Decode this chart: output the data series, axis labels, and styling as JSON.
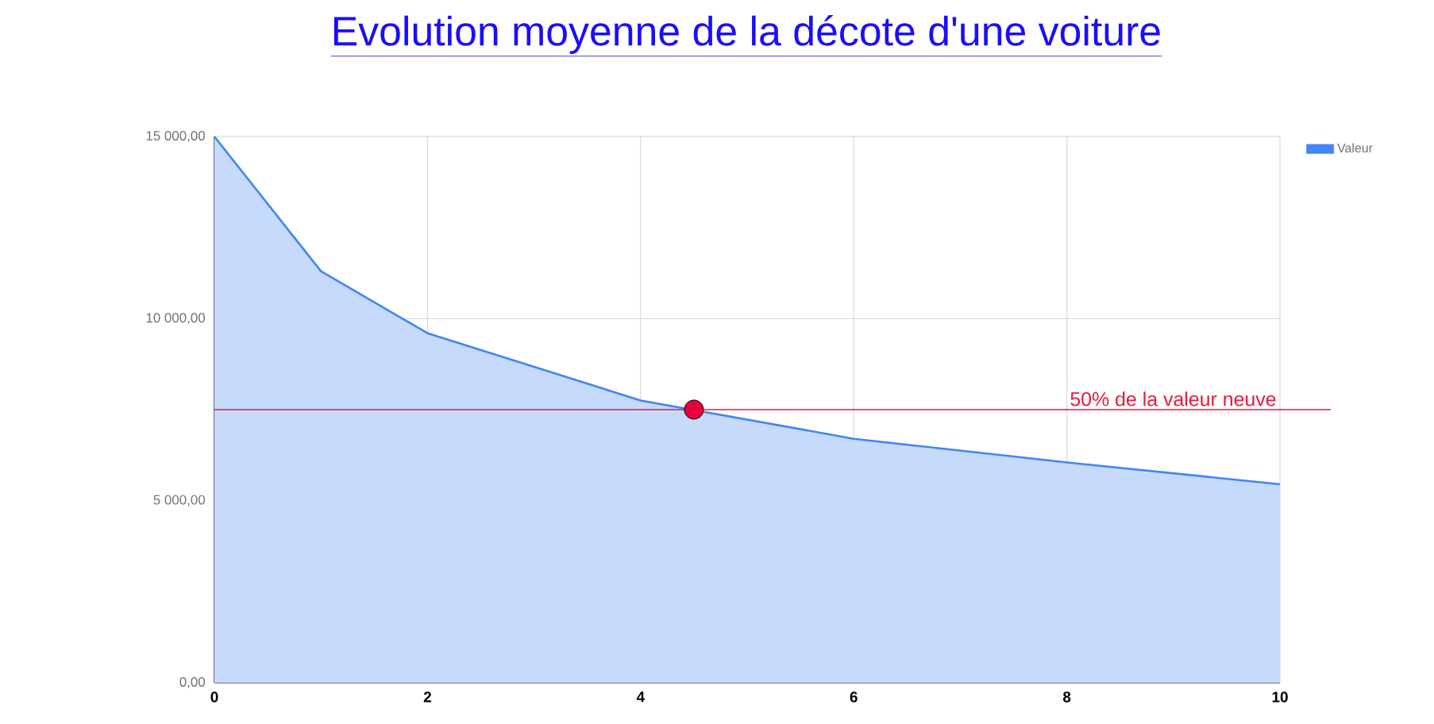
{
  "chart_data": {
    "type": "area",
    "title": "Evolution moyenne de la décote d'une voiture",
    "x": [
      0,
      1,
      2,
      4,
      6,
      8,
      10
    ],
    "series": [
      {
        "name": "Valeur",
        "color": "#4285f4",
        "values": [
          15000,
          11300,
          9600,
          7750,
          6700,
          6050,
          5450
        ]
      },
      {
        "type": "scatter",
        "x": [
          4.5
        ],
        "values": [
          7500
        ],
        "color": "#e8003a"
      }
    ],
    "xlim": [
      0,
      10
    ],
    "xticks": [
      0,
      2,
      4,
      6,
      8,
      10
    ],
    "ylim": [
      0,
      15000
    ],
    "yticks": [
      {
        "value": 0,
        "label": "0,00"
      },
      {
        "value": 5000,
        "label": "5 000,00"
      },
      {
        "value": 10000,
        "label": "10 000,00"
      },
      {
        "value": 15000,
        "label": "15 000,00"
      }
    ],
    "ref_lines": [
      {
        "axis": "y",
        "value": 7500,
        "label": "50% de la valeur neuve",
        "color": "#e8193c"
      }
    ],
    "grid": true,
    "legend": "top right"
  }
}
